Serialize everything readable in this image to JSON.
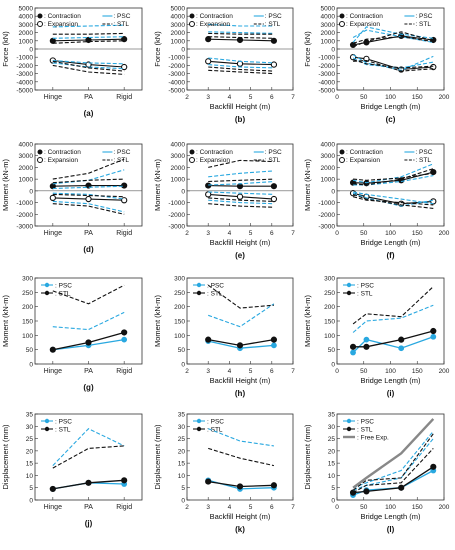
{
  "chart_data": [
    {
      "id": "a",
      "panel_label": "(a)",
      "type": "line",
      "x": [
        "Hinge",
        "PA",
        "Rigid"
      ],
      "xlabel": "",
      "ylabel": "Force (kN)",
      "ylim": [
        -5000,
        5000
      ],
      "yticks": [
        "-5000",
        "-4000",
        "-3000",
        "-2000",
        "-1000",
        "0",
        "1000",
        "2000",
        "3000",
        "4000",
        "5000"
      ],
      "xticks": [
        "Hinge",
        "PA",
        "Rigid"
      ],
      "legend": [
        "● : Contraction",
        "○ : Expansion",
        ": PSC",
        ": STL"
      ],
      "series": [
        {
          "name": "Contraction",
          "values": [
            1000,
            1100,
            1200
          ]
        },
        {
          "name": "Expansion",
          "values": [
            -1400,
            -1900,
            -2200
          ]
        },
        {
          "name": "PSC",
          "values": [
            1300,
            1400,
            1500
          ]
        },
        {
          "name": "PSC",
          "values": [
            2700,
            2800,
            2900
          ]
        },
        {
          "name": "PSC",
          "values": [
            -1400,
            -1700,
            -1800
          ]
        },
        {
          "name": "PSC",
          "values": [
            -1700,
            -2200,
            -2400
          ]
        },
        {
          "name": "STL",
          "values": [
            700,
            900,
            1000
          ]
        },
        {
          "name": "STL",
          "values": [
            1800,
            1800,
            1900
          ]
        },
        {
          "name": "STL",
          "values": [
            -1500,
            -2300,
            -2700
          ]
        },
        {
          "name": "STL",
          "values": [
            -2000,
            -2800,
            -3100
          ]
        }
      ]
    },
    {
      "id": "b",
      "panel_label": "(b)",
      "type": "line",
      "x": [
        3,
        4.5,
        6.1
      ],
      "xlabel": "Backfill Height (m)",
      "ylabel": "Force (kN)",
      "ylim": [
        -5000,
        5000
      ],
      "xlim": [
        2,
        7
      ],
      "yticks": [
        "-5000",
        "-4000",
        "-3000",
        "-2000",
        "-1000",
        "0",
        "1000",
        "2000",
        "3000",
        "4000",
        "5000"
      ],
      "xticks": [
        "2",
        "3",
        "4",
        "5",
        "6",
        "7"
      ],
      "legend": [
        "● : Contraction",
        "○ : Expansion",
        ": PSC",
        ": STL"
      ],
      "series": [
        {
          "name": "Contraction",
          "values": [
            1200,
            1100,
            1000
          ]
        },
        {
          "name": "Expansion",
          "values": [
            -1500,
            -1800,
            -1900
          ]
        },
        {
          "name": "PSC",
          "values": [
            2100,
            2000,
            1900
          ]
        },
        {
          "name": "PSC",
          "values": [
            3000,
            2800,
            2800
          ]
        },
        {
          "name": "PSC",
          "values": [
            -1100,
            -1500,
            -1700
          ]
        },
        {
          "name": "PSC",
          "values": [
            -1900,
            -2200,
            -2300
          ]
        },
        {
          "name": "STL",
          "values": [
            1500,
            1400,
            1300
          ]
        },
        {
          "name": "STL",
          "values": [
            1900,
            1800,
            1800
          ]
        },
        {
          "name": "STL",
          "values": [
            -2600,
            -2800,
            -3000
          ]
        },
        {
          "name": "STL",
          "values": [
            -2200,
            -2500,
            -2700
          ]
        }
      ]
    },
    {
      "id": "c",
      "panel_label": "(c)",
      "type": "line",
      "x": [
        30,
        55,
        120,
        180
      ],
      "xlabel": "Bridge Length (m)",
      "ylabel": "Force (kN)",
      "ylim": [
        -5000,
        5000
      ],
      "xlim": [
        0,
        200
      ],
      "yticks": [
        "-5000",
        "-4000",
        "-3000",
        "-2000",
        "-1000",
        "0",
        "1000",
        "2000",
        "3000",
        "4000",
        "5000"
      ],
      "xticks": [
        "0",
        "50",
        "100",
        "150",
        "200"
      ],
      "legend": [
        "● : Contraction",
        "○ : Expansion",
        ": PSC",
        ": STL"
      ],
      "series": [
        {
          "name": "Contraction",
          "values": [
            500,
            800,
            1600,
            1100
          ]
        },
        {
          "name": "Expansion",
          "values": [
            -1000,
            -1200,
            -2500,
            -2200
          ]
        },
        {
          "name": "PSC",
          "values": [
            800,
            2700,
            1800,
            1300
          ]
        },
        {
          "name": "PSC",
          "values": [
            1400,
            2300,
            1500,
            800
          ]
        },
        {
          "name": "PSC",
          "values": [
            -700,
            -1700,
            -2600,
            -900
          ]
        },
        {
          "name": "PSC",
          "values": [
            -1100,
            -1900,
            -2300,
            -1600
          ]
        },
        {
          "name": "STL",
          "values": [
            300,
            900,
            2100,
            1000
          ]
        },
        {
          "name": "STL",
          "values": [
            700,
            1200,
            1500,
            900
          ]
        },
        {
          "name": "STL",
          "values": [
            -1500,
            -1400,
            -2700,
            -2400
          ]
        },
        {
          "name": "STL",
          "values": [
            -1300,
            -1800,
            -2300,
            -2100
          ]
        }
      ]
    },
    {
      "id": "d",
      "panel_label": "(d)",
      "type": "line",
      "x": [
        "Hinge",
        "PA",
        "Rigid"
      ],
      "xlabel": "",
      "ylabel": "Moment (kN-m)",
      "ylim": [
        -3000,
        4000
      ],
      "yticks": [
        "-3000",
        "-2000",
        "-1000",
        "0",
        "1000",
        "2000",
        "3000",
        "4000"
      ],
      "xticks": [
        "Hinge",
        "PA",
        "Rigid"
      ],
      "legend": [
        "● : Contraction",
        "○ : Expansion",
        ": PSC",
        ": STL"
      ],
      "series": [
        {
          "name": "Contraction",
          "values": [
            400,
            450,
            450
          ]
        },
        {
          "name": "Expansion",
          "values": [
            -600,
            -700,
            -800
          ]
        },
        {
          "name": "PSC",
          "values": [
            600,
            900,
            1800
          ]
        },
        {
          "name": "PSC",
          "values": [
            200,
            300,
            400
          ]
        },
        {
          "name": "PSC",
          "values": [
            -200,
            -300,
            -700
          ]
        },
        {
          "name": "PSC",
          "values": [
            -900,
            -1100,
            -1800
          ]
        },
        {
          "name": "STL",
          "values": [
            1000,
            1500,
            2700
          ]
        },
        {
          "name": "STL",
          "values": [
            -1100,
            -1300,
            -2000
          ]
        },
        {
          "name": "STL",
          "values": [
            -300,
            -400,
            -500
          ]
        },
        {
          "name": "STL",
          "values": [
            700,
            900,
            1000
          ]
        }
      ]
    },
    {
      "id": "e",
      "panel_label": "(e)",
      "type": "line",
      "x": [
        3,
        4.5,
        6.1
      ],
      "xlabel": "Backfill Height (m)",
      "ylabel": "Moment (kN-m)",
      "ylim": [
        -3000,
        4000
      ],
      "xlim": [
        2,
        7
      ],
      "yticks": [
        "-3000",
        "-2000",
        "-1000",
        "0",
        "1000",
        "2000",
        "3000",
        "4000"
      ],
      "xticks": [
        "2",
        "3",
        "4",
        "5",
        "6",
        "7"
      ],
      "legend": [
        "● : Contraction",
        "○ : Expansion",
        ": PSC",
        ": STL"
      ],
      "series": [
        {
          "name": "Contraction",
          "values": [
            450,
            400,
            400
          ]
        },
        {
          "name": "Expansion",
          "values": [
            -300,
            -500,
            -700
          ]
        },
        {
          "name": "PSC",
          "values": [
            1200,
            1500,
            1700
          ]
        },
        {
          "name": "PSC",
          "values": [
            500,
            600,
            800
          ]
        },
        {
          "name": "PSC",
          "values": [
            -100,
            -200,
            -300
          ]
        },
        {
          "name": "PSC",
          "values": [
            -800,
            -1000,
            -1100
          ]
        },
        {
          "name": "STL",
          "values": [
            2000,
            2600,
            2500
          ]
        },
        {
          "name": "STL",
          "values": [
            800,
            900,
            1000
          ]
        },
        {
          "name": "STL",
          "values": [
            -1100,
            -1300,
            -1400
          ]
        },
        {
          "name": "STL",
          "values": [
            -600,
            -800,
            -900
          ]
        }
      ]
    },
    {
      "id": "f",
      "panel_label": "(f)",
      "type": "line",
      "x": [
        30,
        55,
        120,
        180
      ],
      "xlabel": "Bridge Length (m)",
      "ylabel": "Moment (kN-m)",
      "ylim": [
        -3000,
        4000
      ],
      "xlim": [
        0,
        200
      ],
      "yticks": [
        "-3000",
        "-2000",
        "-1000",
        "0",
        "1000",
        "2000",
        "3000",
        "4000"
      ],
      "xticks": [
        "0",
        "50",
        "100",
        "150",
        "200"
      ],
      "legend": [
        "● : Contraction",
        "○ : Expansion",
        ": PSC",
        ": STL"
      ],
      "series": [
        {
          "name": "Contraction",
          "values": [
            700,
            650,
            900,
            1600
          ]
        },
        {
          "name": "Expansion",
          "values": [
            -200,
            -500,
            -1100,
            -900
          ]
        },
        {
          "name": "PSC",
          "values": [
            900,
            700,
            1200,
            2300
          ]
        },
        {
          "name": "PSC",
          "values": [
            500,
            500,
            800,
            1300
          ]
        },
        {
          "name": "PSC",
          "values": [
            -200,
            -600,
            -1300,
            -800
          ]
        },
        {
          "name": "PSC",
          "values": [
            -100,
            -300,
            -700,
            -1100
          ]
        },
        {
          "name": "STL",
          "values": [
            600,
            500,
            1000,
            1900
          ]
        },
        {
          "name": "STL",
          "values": [
            1000,
            900,
            1100,
            1500
          ]
        },
        {
          "name": "STL",
          "values": [
            -300,
            -700,
            -1200,
            -1500
          ]
        },
        {
          "name": "STL",
          "values": [
            -500,
            -800,
            -1000,
            -1200
          ]
        }
      ]
    },
    {
      "id": "g",
      "panel_label": "(g)",
      "type": "line",
      "x": [
        "Hinge",
        "PA",
        "Rigid"
      ],
      "xlabel": "",
      "ylabel": "Moment (kN-m)",
      "ylim": [
        0,
        300
      ],
      "yticks": [
        "0",
        "50",
        "100",
        "150",
        "200",
        "250",
        "300"
      ],
      "xticks": [
        "Hinge",
        "PA",
        "Rigid"
      ],
      "legend": [
        ": PSC",
        ": STL"
      ],
      "series": [
        {
          "name": "PSC",
          "values": [
            50,
            65,
            85
          ]
        },
        {
          "name": "STL",
          "values": [
            50,
            75,
            110
          ]
        },
        {
          "name": "PSC",
          "values": [
            130,
            120,
            180
          ]
        },
        {
          "name": "STL",
          "values": [
            255,
            210,
            275
          ]
        }
      ]
    },
    {
      "id": "h",
      "panel_label": "(h)",
      "type": "line",
      "x": [
        3,
        4.5,
        6.1
      ],
      "xlabel": "Backfill Height (m)",
      "ylabel": "Moment (kN-m)",
      "ylim": [
        0,
        300
      ],
      "xlim": [
        2,
        7
      ],
      "yticks": [
        "0",
        "50",
        "100",
        "150",
        "200",
        "250",
        "300"
      ],
      "xticks": [
        "2",
        "3",
        "4",
        "5",
        "6",
        "7"
      ],
      "legend": [
        ": PSC",
        ": STL"
      ],
      "series": [
        {
          "name": "PSC",
          "values": [
            80,
            55,
            65
          ]
        },
        {
          "name": "STL",
          "values": [
            85,
            65,
            85
          ]
        },
        {
          "name": "PSC",
          "values": [
            170,
            130,
            210
          ]
        },
        {
          "name": "STL",
          "values": [
            275,
            195,
            205
          ]
        }
      ]
    },
    {
      "id": "i",
      "panel_label": "(i)",
      "type": "line",
      "x": [
        30,
        55,
        120,
        180
      ],
      "xlabel": "Bridge Length (m)",
      "ylabel": "Moment (kN-m)",
      "ylim": [
        0,
        300
      ],
      "xlim": [
        0,
        200
      ],
      "yticks": [
        "0",
        "50",
        "100",
        "150",
        "200",
        "250",
        "300"
      ],
      "xticks": [
        "0",
        "50",
        "100",
        "150",
        "200"
      ],
      "legend": [
        ": PSC",
        ": STL"
      ],
      "series": [
        {
          "name": "PSC",
          "values": [
            40,
            85,
            55,
            95
          ]
        },
        {
          "name": "STL",
          "values": [
            60,
            60,
            85,
            115
          ]
        },
        {
          "name": "PSC",
          "values": [
            110,
            150,
            160,
            205
          ]
        },
        {
          "name": "STL",
          "values": [
            140,
            175,
            165,
            270
          ]
        }
      ]
    },
    {
      "id": "j",
      "panel_label": "(j)",
      "type": "line",
      "x": [
        "Hinge",
        "PA",
        "Rigid"
      ],
      "xlabel": "",
      "ylabel": "Displacement (mm)",
      "ylim": [
        0,
        35
      ],
      "yticks": [
        "0",
        "5",
        "10",
        "15",
        "20",
        "25",
        "30",
        "35"
      ],
      "xticks": [
        "Hinge",
        "PA",
        "Rigid"
      ],
      "legend": [
        ": PSC",
        ": STL"
      ],
      "series": [
        {
          "name": "PSC",
          "values": [
            4.5,
            7,
            6.5
          ]
        },
        {
          "name": "STL",
          "values": [
            4.5,
            7,
            8
          ]
        },
        {
          "name": "PSC",
          "values": [
            14,
            29,
            22
          ]
        },
        {
          "name": "STL",
          "values": [
            13,
            21,
            22
          ]
        }
      ]
    },
    {
      "id": "k",
      "panel_label": "(k)",
      "type": "line",
      "x": [
        3,
        4.5,
        6.1
      ],
      "xlabel": "Backfill Height (m)",
      "ylabel": "Displacement (mm)",
      "ylim": [
        0,
        35
      ],
      "xlim": [
        2,
        7
      ],
      "yticks": [
        "0",
        "5",
        "10",
        "15",
        "20",
        "25",
        "30",
        "35"
      ],
      "xticks": [
        "2",
        "3",
        "4",
        "5",
        "6",
        "7"
      ],
      "legend": [
        ": PSC",
        ": STL"
      ],
      "series": [
        {
          "name": "PSC",
          "values": [
            8,
            4.5,
            5
          ]
        },
        {
          "name": "STL",
          "values": [
            7.5,
            5.5,
            6
          ]
        },
        {
          "name": "PSC",
          "values": [
            29,
            24,
            22
          ]
        },
        {
          "name": "STL",
          "values": [
            21,
            17,
            14
          ]
        }
      ]
    },
    {
      "id": "l",
      "panel_label": "(l)",
      "type": "line",
      "x": [
        30,
        55,
        120,
        180
      ],
      "xlabel": "Bridge Length (m)",
      "ylabel": "Displacement (mm)",
      "ylim": [
        0,
        35
      ],
      "xlim": [
        0,
        200
      ],
      "yticks": [
        "0",
        "5",
        "10",
        "15",
        "20",
        "25",
        "30",
        "35"
      ],
      "xticks": [
        "0",
        "50",
        "100",
        "150",
        "200"
      ],
      "legend": [
        ": PSC",
        ": STL",
        ": Free Exp."
      ],
      "series": [
        {
          "name": "PSC",
          "values": [
            2,
            4,
            5,
            12
          ]
        },
        {
          "name": "STL",
          "values": [
            3,
            3.5,
            5,
            13.5
          ]
        },
        {
          "name": "PSC",
          "values": [
            5,
            7,
            12,
            28
          ]
        },
        {
          "name": "PSC",
          "values": [
            4,
            6,
            9,
            25
          ]
        },
        {
          "name": "STL",
          "values": [
            4,
            8,
            9,
            27
          ]
        },
        {
          "name": "STL",
          "values": [
            3,
            6,
            7,
            21
          ]
        },
        {
          "name": "Free Exp.",
          "values": [
            5,
            9,
            19,
            33
          ]
        }
      ]
    }
  ]
}
